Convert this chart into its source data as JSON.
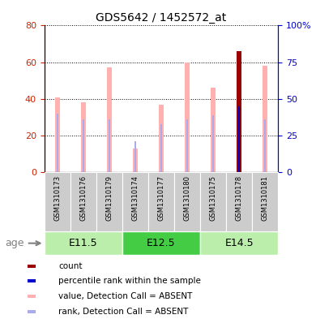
{
  "title": "GDS5642 / 1452572_at",
  "samples": [
    "GSM1310173",
    "GSM1310176",
    "GSM1310179",
    "GSM1310174",
    "GSM1310177",
    "GSM1310180",
    "GSM1310175",
    "GSM1310178",
    "GSM1310181"
  ],
  "value_absent": [
    41,
    38,
    57,
    13,
    37,
    60,
    46,
    null,
    58
  ],
  "rank_absent": [
    32,
    29,
    29,
    17,
    26,
    29,
    31,
    null,
    29
  ],
  "count": [
    null,
    null,
    null,
    null,
    null,
    null,
    null,
    66,
    null
  ],
  "percentile_rank": [
    null,
    null,
    null,
    null,
    null,
    null,
    null,
    36,
    null
  ],
  "ylim_left": [
    0,
    80
  ],
  "ylim_right": [
    0,
    100
  ],
  "yticks_left": [
    0,
    20,
    40,
    60,
    80
  ],
  "yticks_right": [
    0,
    25,
    50,
    75,
    100
  ],
  "left_axis_color": "#CC2200",
  "right_axis_color": "#0000CC",
  "bar_width": 0.18,
  "rank_bar_width": 0.07,
  "value_absent_color": "#FFB0B0",
  "rank_absent_color": "#AAAAEE",
  "count_color": "#990000",
  "percentile_color": "#0000CC",
  "age_groups": [
    {
      "label": "E11.5",
      "start": 0,
      "end": 3,
      "color": "#BBEEAA"
    },
    {
      "label": "E12.5",
      "start": 3,
      "end": 6,
      "color": "#44CC44"
    },
    {
      "label": "E14.5",
      "start": 6,
      "end": 9,
      "color": "#BBEEAA"
    }
  ],
  "sample_box_color": "#CCCCCC",
  "legend_items": [
    {
      "color": "#990000",
      "label": "count"
    },
    {
      "color": "#0000CC",
      "label": "percentile rank within the sample"
    },
    {
      "color": "#FFB0B0",
      "label": "value, Detection Call = ABSENT"
    },
    {
      "color": "#AAAAEE",
      "label": "rank, Detection Call = ABSENT"
    }
  ]
}
